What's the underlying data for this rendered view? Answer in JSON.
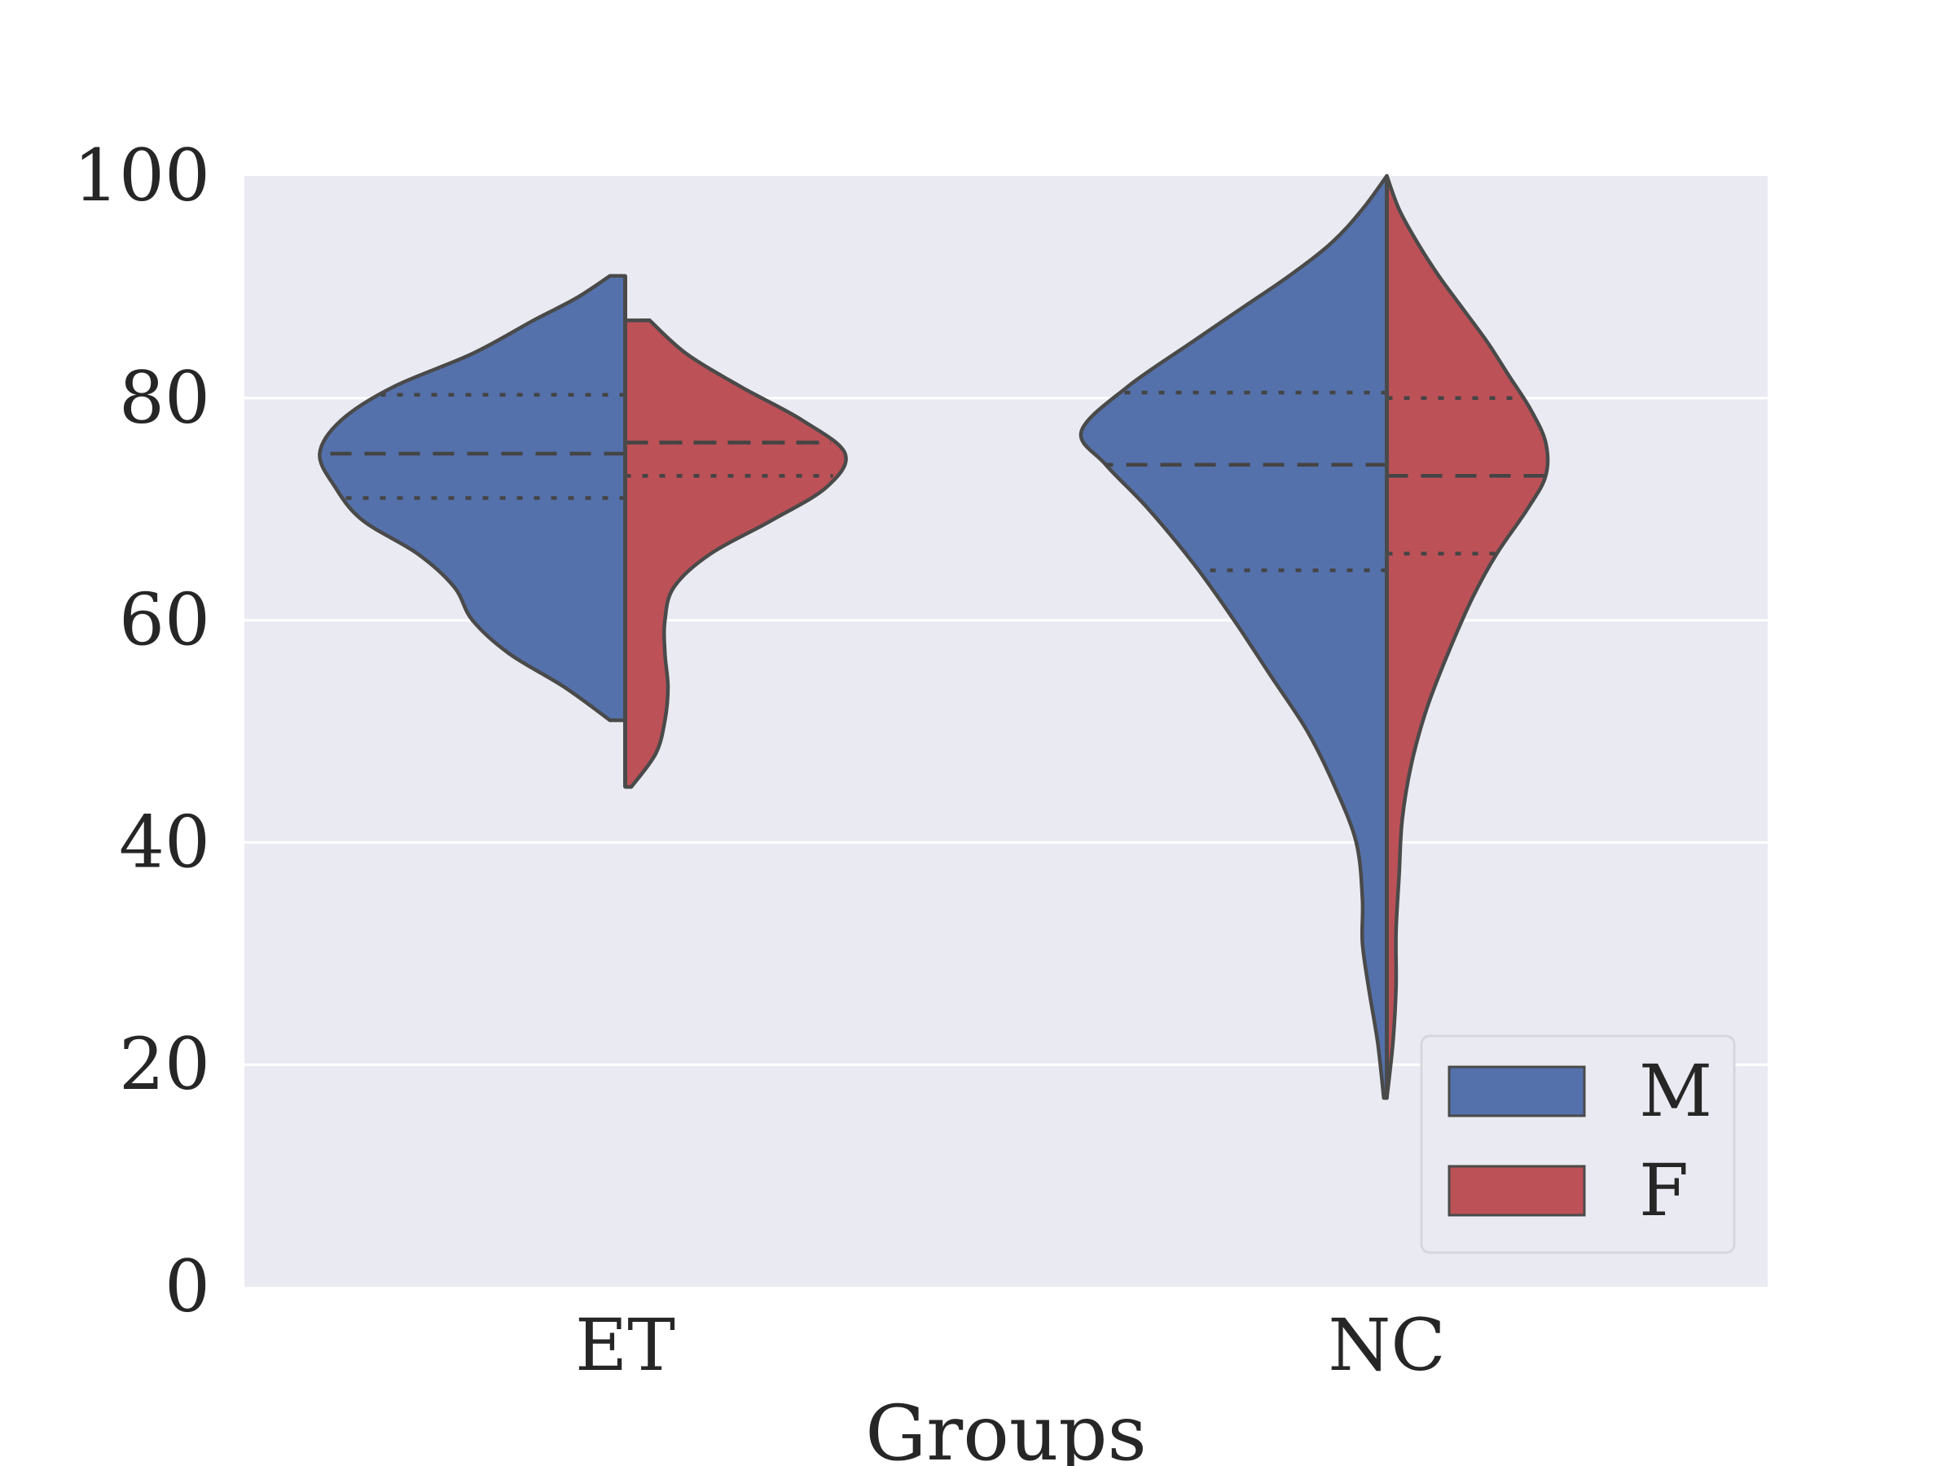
{
  "chart_data": {
    "type": "violin",
    "title": "",
    "xlabel": "Groups",
    "ylabel": "",
    "ylim": [
      0,
      100
    ],
    "yticks": [
      0,
      20,
      40,
      60,
      80,
      100
    ],
    "categories": [
      "ET",
      "NC"
    ],
    "grid": true,
    "legend_position": "lower-right",
    "series": [
      {
        "name": "M",
        "color": "#5471ab",
        "groups": [
          {
            "category": "ET",
            "min": 51,
            "max": 91,
            "quartiles": [
              71,
              75,
              80.3
            ],
            "density": [
              [
                51,
                0.05
              ],
              [
                54,
                0.2
              ],
              [
                57,
                0.38
              ],
              [
                60,
                0.5
              ],
              [
                63,
                0.56
              ],
              [
                66,
                0.68
              ],
              [
                69,
                0.86
              ],
              [
                72,
                0.95
              ],
              [
                75,
                1.0
              ],
              [
                78,
                0.93
              ],
              [
                81,
                0.76
              ],
              [
                84,
                0.5
              ],
              [
                87,
                0.3
              ],
              [
                89,
                0.16
              ],
              [
                91,
                0.05
              ]
            ]
          },
          {
            "category": "NC",
            "min": 17,
            "max": 100,
            "quartiles": [
              64.5,
              74,
              80.5
            ],
            "density": [
              [
                17,
                0.01
              ],
              [
                22,
                0.03
              ],
              [
                27,
                0.06
              ],
              [
                31,
                0.08
              ],
              [
                35,
                0.08
              ],
              [
                40,
                0.1
              ],
              [
                45,
                0.17
              ],
              [
                50,
                0.26
              ],
              [
                55,
                0.38
              ],
              [
                60,
                0.5
              ],
              [
                65,
                0.63
              ],
              [
                70,
                0.78
              ],
              [
                74,
                0.92
              ],
              [
                77,
                1.0
              ],
              [
                81,
                0.85
              ],
              [
                85,
                0.64
              ],
              [
                88,
                0.48
              ],
              [
                91,
                0.32
              ],
              [
                94,
                0.18
              ],
              [
                97,
                0.08
              ],
              [
                100,
                0.0
              ]
            ]
          }
        ]
      },
      {
        "name": "F",
        "color": "#bc5157",
        "groups": [
          {
            "category": "ET",
            "min": 45,
            "max": 87,
            "quartiles": [
              73,
              76,
              76
            ],
            "density": [
              [
                45,
                0.02
              ],
              [
                48,
                0.1
              ],
              [
                51,
                0.13
              ],
              [
                54,
                0.14
              ],
              [
                57,
                0.13
              ],
              [
                60,
                0.13
              ],
              [
                63,
                0.16
              ],
              [
                66,
                0.28
              ],
              [
                69,
                0.48
              ],
              [
                72,
                0.66
              ],
              [
                75,
                0.72
              ],
              [
                78,
                0.58
              ],
              [
                81,
                0.38
              ],
              [
                84,
                0.2
              ],
              [
                87,
                0.08
              ]
            ]
          },
          {
            "category": "NC",
            "min": 17,
            "max": 100,
            "quartiles": [
              66,
              73,
              80
            ],
            "density": [
              [
                17,
                0.0
              ],
              [
                22,
                0.02
              ],
              [
                27,
                0.03
              ],
              [
                32,
                0.03
              ],
              [
                37,
                0.04
              ],
              [
                42,
                0.05
              ],
              [
                47,
                0.08
              ],
              [
                52,
                0.13
              ],
              [
                57,
                0.2
              ],
              [
                62,
                0.28
              ],
              [
                66,
                0.36
              ],
              [
                70,
                0.46
              ],
              [
                73,
                0.52
              ],
              [
                76,
                0.52
              ],
              [
                79,
                0.47
              ],
              [
                82,
                0.4
              ],
              [
                85,
                0.33
              ],
              [
                88,
                0.25
              ],
              [
                91,
                0.17
              ],
              [
                94,
                0.1
              ],
              [
                97,
                0.04
              ],
              [
                100,
                0.0
              ]
            ]
          }
        ]
      }
    ]
  }
}
